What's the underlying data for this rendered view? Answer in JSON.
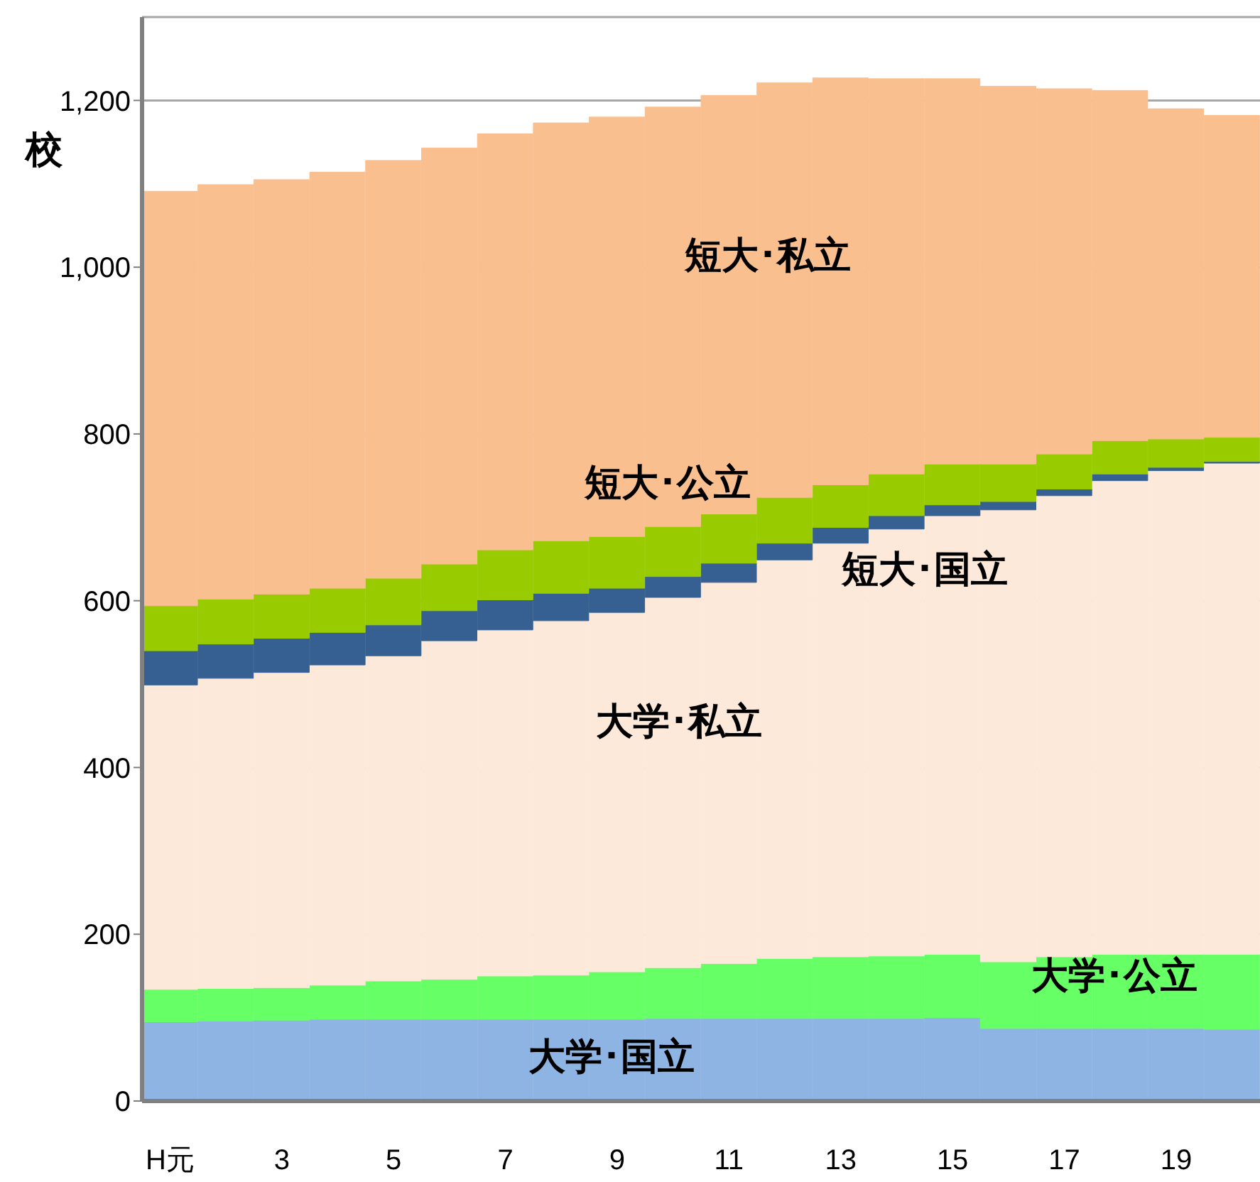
{
  "chart_data": {
    "type": "bar",
    "stacked": true,
    "ylabel": "校",
    "categories": [
      "H元",
      null,
      "3",
      null,
      "5",
      null,
      "7",
      null,
      "9",
      null,
      "11",
      null,
      "13",
      null,
      "15",
      null,
      "17",
      null,
      "19",
      null
    ],
    "series": [
      {
        "name": "大学･国立",
        "color": "#8eb4e3",
        "values": [
          95,
          96,
          97,
          98,
          98,
          98,
          98,
          98,
          98,
          99,
          99,
          99,
          99,
          99,
          100,
          87,
          87,
          87,
          87,
          86
        ]
      },
      {
        "name": "大学･公立",
        "color": "#66ff66",
        "values": [
          39,
          39,
          39,
          41,
          46,
          48,
          52,
          53,
          57,
          61,
          66,
          72,
          74,
          75,
          76,
          80,
          86,
          89,
          89,
          90
        ]
      },
      {
        "name": "大学･私立",
        "color": "#fde9d9",
        "values": [
          365,
          372,
          378,
          384,
          390,
          406,
          415,
          425,
          431,
          444,
          457,
          478,
          496,
          512,
          526,
          542,
          553,
          568,
          580,
          589
        ]
      },
      {
        "name": "短大･国立",
        "color": "#366092",
        "values": [
          41,
          41,
          41,
          39,
          37,
          36,
          36,
          33,
          29,
          25,
          23,
          20,
          19,
          16,
          13,
          10,
          8,
          8,
          4,
          2
        ]
      },
      {
        "name": "短大･公立",
        "color": "#99cc00",
        "values": [
          54,
          54,
          53,
          53,
          56,
          56,
          60,
          63,
          62,
          60,
          59,
          55,
          51,
          50,
          49,
          45,
          42,
          40,
          34,
          29
        ]
      },
      {
        "name": "短大･私立",
        "color": "#f9bf8f",
        "values": [
          497,
          497,
          497,
          499,
          501,
          499,
          499,
          501,
          503,
          503,
          502,
          497,
          488,
          474,
          462,
          453,
          438,
          420,
          396,
          386
        ]
      }
    ],
    "ylim": [
      0,
      1300
    ],
    "yticks": [
      0,
      200,
      400,
      600,
      800,
      {
        "value": 1000,
        "label": "1,000"
      },
      {
        "value": 1200,
        "label": "1,200"
      }
    ],
    "grid": "y"
  }
}
